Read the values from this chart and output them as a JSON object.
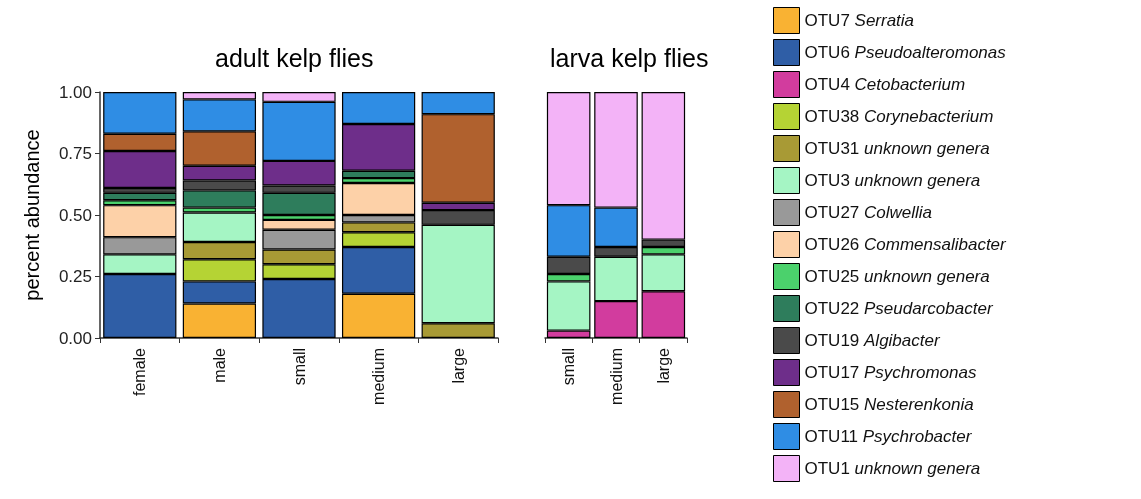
{
  "chart_data": [
    {
      "type": "bar",
      "stacked": true,
      "title": "adult kelp flies",
      "ylabel": "percent abundance",
      "categories": [
        "female",
        "male",
        "small",
        "medium",
        "large"
      ],
      "ylim": [
        0,
        1
      ],
      "yticks": [
        {
          "value": 0,
          "label": "0.00"
        },
        {
          "value": 0.25,
          "label": "0.25"
        },
        {
          "value": 0.5,
          "label": "0.50"
        },
        {
          "value": 0.75,
          "label": "0.75"
        },
        {
          "value": 1,
          "label": "1.00"
        }
      ],
      "grid": false,
      "legend": false,
      "series": [
        {
          "color": "#f9b233",
          "values": [
            0,
            0.14,
            0,
            0.18,
            0
          ]
        },
        {
          "color": "#2f5ea6",
          "values": [
            0.26,
            0.09,
            0.24,
            0.19,
            0
          ]
        },
        {
          "color": "#d23c9e",
          "values": [
            0,
            0,
            0,
            0,
            0
          ]
        },
        {
          "color": "#b5d334",
          "values": [
            0,
            0.09,
            0.06,
            0.06,
            0
          ]
        },
        {
          "color": "#a89a35",
          "values": [
            0,
            0.07,
            0.06,
            0.04,
            0.06
          ]
        },
        {
          "color": "#a5f5c4",
          "values": [
            0.08,
            0.12,
            0,
            0,
            0.4
          ]
        },
        {
          "color": "#999999",
          "values": [
            0.07,
            0,
            0.08,
            0.03,
            0
          ]
        },
        {
          "color": "#fdd1a8",
          "values": [
            0.13,
            0,
            0.04,
            0.13,
            0
          ]
        },
        {
          "color": "#4bd16c",
          "values": [
            0.02,
            0.02,
            0.02,
            0.02,
            0
          ]
        },
        {
          "color": "#2e7d5c",
          "values": [
            0.03,
            0.07,
            0.09,
            0.03,
            0
          ]
        },
        {
          "color": "#4a4a4a",
          "values": [
            0.02,
            0.04,
            0.03,
            0,
            0.06
          ]
        },
        {
          "color": "#6e2e8a",
          "values": [
            0.15,
            0.06,
            0.1,
            0.19,
            0.03
          ]
        },
        {
          "color": "#b0612e",
          "values": [
            0.07,
            0.14,
            0,
            0,
            0.36
          ]
        },
        {
          "color": "#2f8de4",
          "values": [
            0.17,
            0.13,
            0.24,
            0.13,
            0.09
          ]
        },
        {
          "color": "#f3b3f7",
          "values": [
            0,
            0.03,
            0.04,
            0,
            0
          ]
        }
      ]
    },
    {
      "type": "bar",
      "stacked": true,
      "title": "larva kelp flies",
      "categories": [
        "small",
        "medium",
        "large"
      ],
      "ylim": [
        0,
        1
      ],
      "tick_labels": "x",
      "grid": false,
      "legend": "right",
      "series": [
        {
          "name": "OTU7 Serratia",
          "color": "#f9b233",
          "values": [
            0,
            0,
            0
          ]
        },
        {
          "name": "OTU6 Pseudoalteromonas",
          "color": "#2f5ea6",
          "values": [
            0,
            0,
            0
          ]
        },
        {
          "name": "OTU4 Cetobacterium",
          "color": "#d23c9e",
          "values": [
            0.03,
            0.15,
            0.19
          ]
        },
        {
          "name": "OTU38 Corynebacterium",
          "color": "#b5d334",
          "values": [
            0,
            0,
            0
          ]
        },
        {
          "name": "OTU31 unknown genera",
          "color": "#a89a35",
          "values": [
            0,
            0,
            0
          ]
        },
        {
          "name": "OTU3 unknown genera",
          "color": "#a5f5c4",
          "values": [
            0.2,
            0.18,
            0.15
          ]
        },
        {
          "name": "OTU27 Colwellia",
          "color": "#999999",
          "values": [
            0,
            0,
            0
          ]
        },
        {
          "name": "OTU26 Commensalibacter",
          "color": "#fdd1a8",
          "values": [
            0,
            0,
            0
          ]
        },
        {
          "name": "OTU25 unknown genera",
          "color": "#4bd16c",
          "values": [
            0.03,
            0,
            0.03
          ]
        },
        {
          "name": "OTU22 Pseudarcobacter",
          "color": "#2e7d5c",
          "values": [
            0,
            0,
            0
          ]
        },
        {
          "name": "OTU19 Algibacter",
          "color": "#4a4a4a",
          "values": [
            0.07,
            0.04,
            0.03
          ]
        },
        {
          "name": "OTU17 Psychromonas",
          "color": "#6e2e8a",
          "values": [
            0,
            0,
            0
          ]
        },
        {
          "name": "OTU15 Nesterenkonia",
          "color": "#b0612e",
          "values": [
            0,
            0,
            0
          ]
        },
        {
          "name": "OTU11 Psychrobacter",
          "color": "#2f8de4",
          "values": [
            0.21,
            0.16,
            0
          ]
        },
        {
          "name": "OTU1 unknown genera",
          "color": "#f3b3f7",
          "values": [
            0.46,
            0.47,
            0.6
          ]
        }
      ]
    }
  ]
}
